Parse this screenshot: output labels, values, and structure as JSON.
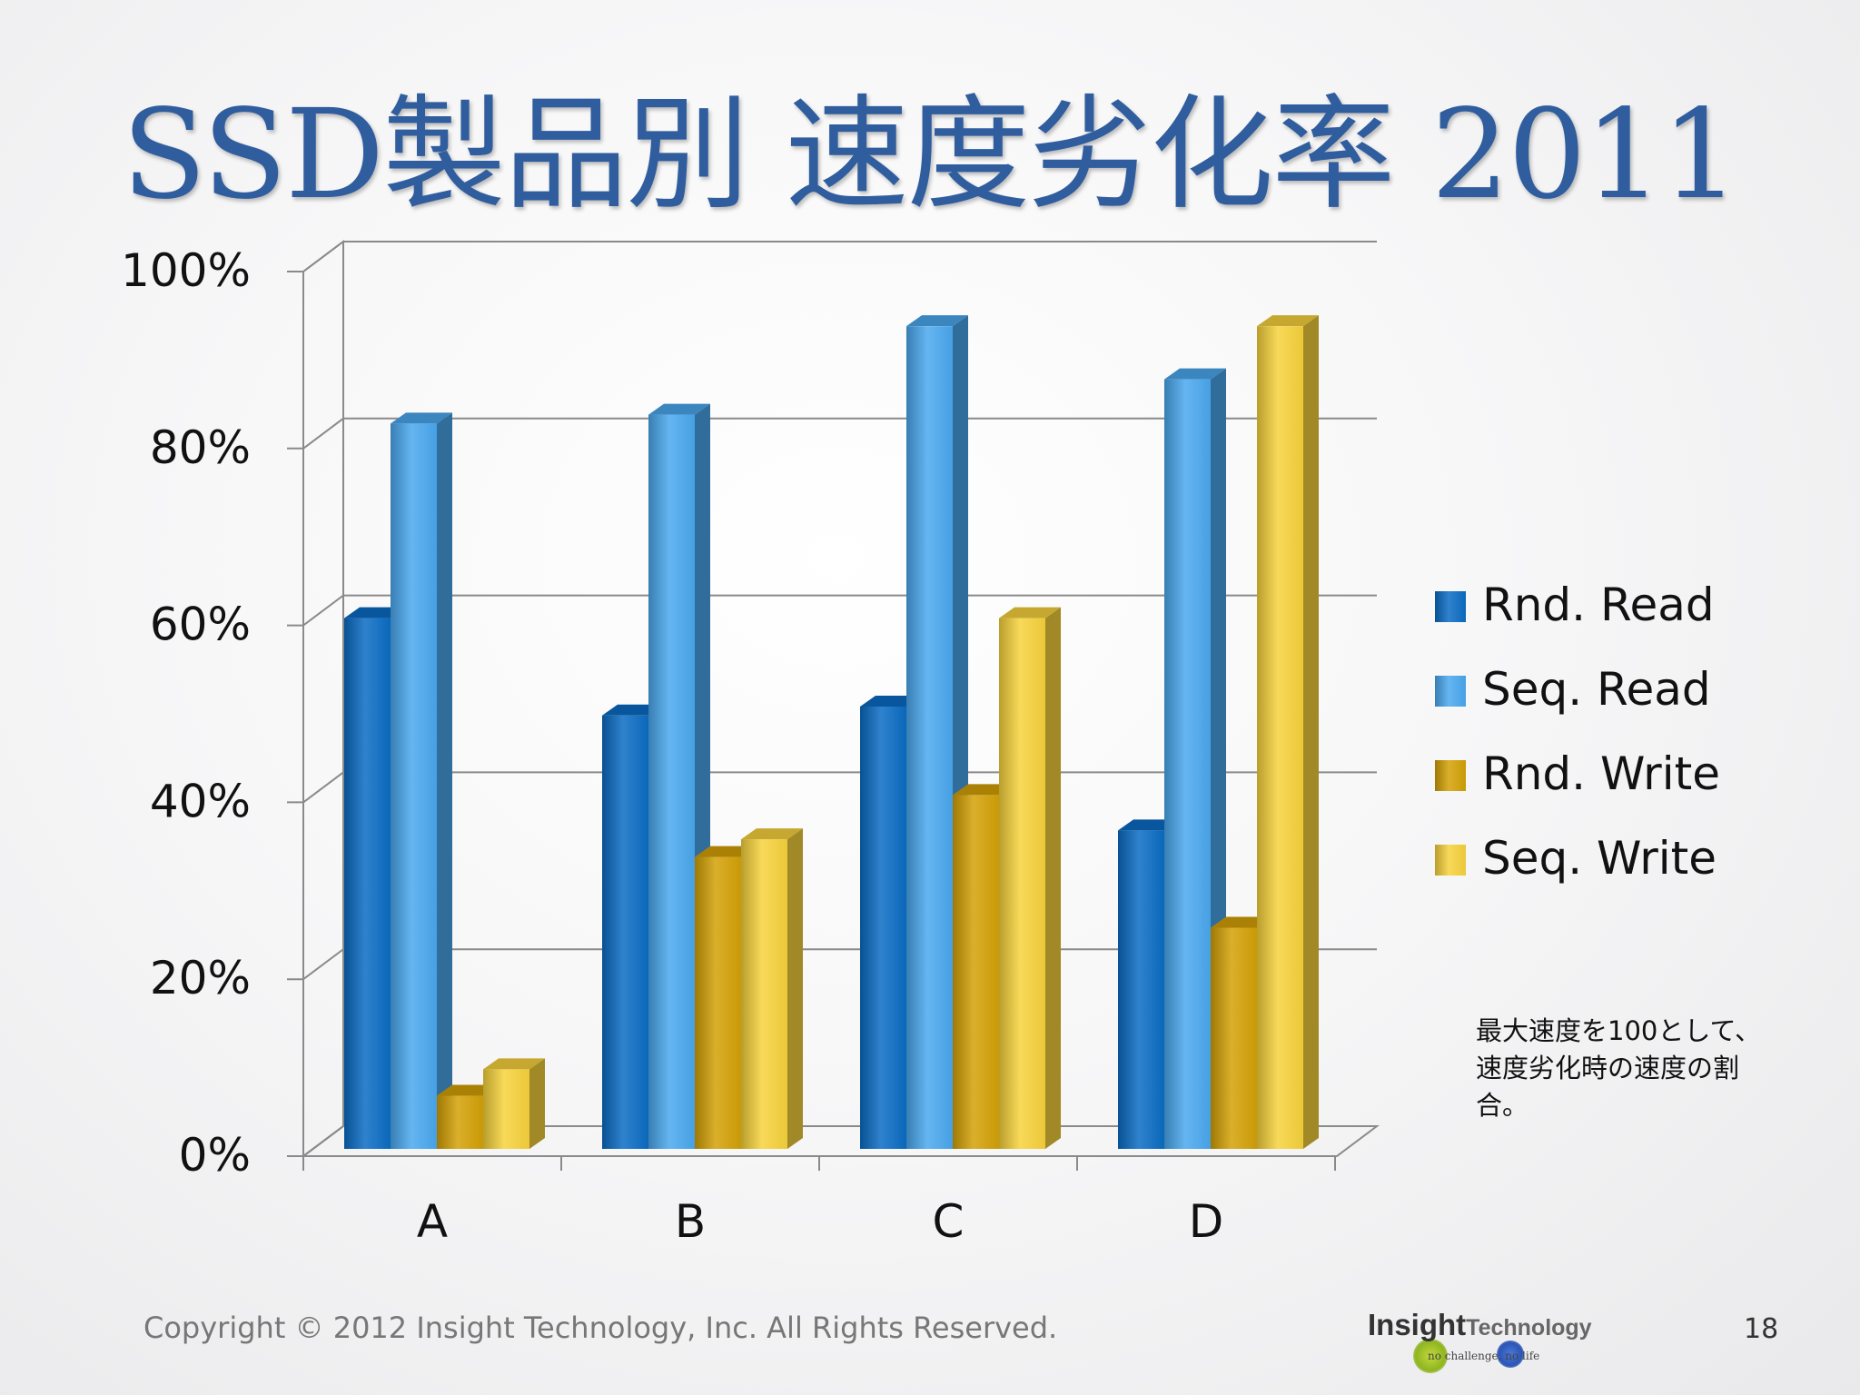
{
  "slide": {
    "title": "SSD製品別 速度劣化率 2011",
    "note": "最大速度を100として、速度劣化時の速度の割合。",
    "copyright": "Copyright © 2012 Insight Technology, Inc. All Rights Reserved.",
    "logo": {
      "main": "Insight",
      "secondary": "Technology",
      "tagline": "no challenge, no life"
    },
    "page_number": "18"
  },
  "chart_data": {
    "type": "bar",
    "style": "3d-clustered",
    "categories": [
      "A",
      "B",
      "C",
      "D"
    ],
    "series": [
      {
        "name": "Rnd. Read",
        "values": [
          60,
          49,
          50,
          36
        ],
        "color": "#0a6cc4"
      },
      {
        "name": "Seq. Read",
        "values": [
          82,
          83,
          93,
          87
        ],
        "color": "#4aa8ef"
      },
      {
        "name": "Rnd. Write",
        "values": [
          6,
          33,
          40,
          25
        ],
        "color": "#d4a106"
      },
      {
        "name": "Seq. Write",
        "values": [
          9,
          35,
          60,
          93
        ],
        "color": "#f7d23c"
      }
    ],
    "yticks": [
      "0%",
      "20%",
      "40%",
      "60%",
      "80%",
      "100%"
    ],
    "ylim": [
      0,
      100
    ],
    "grid": true,
    "legend_position": "right"
  }
}
